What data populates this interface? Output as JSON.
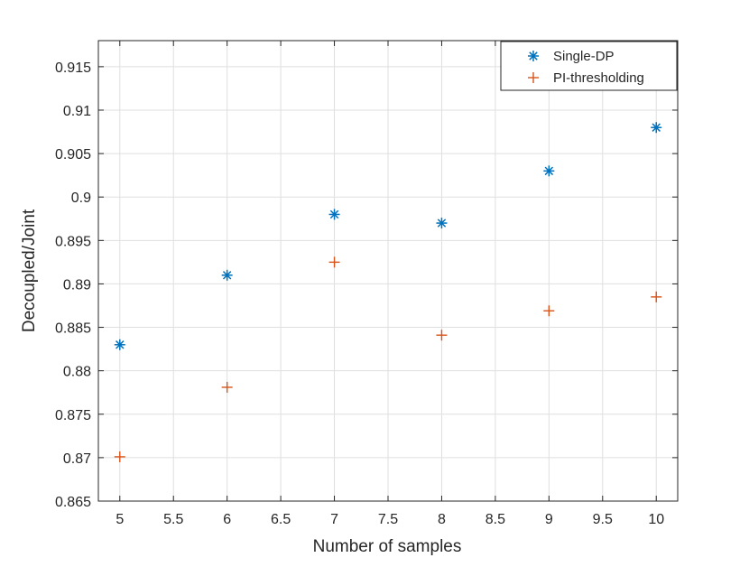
{
  "chart_data": {
    "type": "scatter",
    "xlabel": "Number of samples",
    "ylabel": "Decoupled/Joint",
    "xlim": [
      4.8,
      10.2
    ],
    "ylim": [
      0.865,
      0.918
    ],
    "xticks": [
      5,
      5.5,
      6,
      6.5,
      7,
      7.5,
      8,
      8.5,
      9,
      9.5,
      10
    ],
    "xtick_labels": [
      "5",
      "5.5",
      "6",
      "6.5",
      "7",
      "7.5",
      "8",
      "8.5",
      "9",
      "9.5",
      "10"
    ],
    "yticks": [
      0.865,
      0.87,
      0.875,
      0.88,
      0.885,
      0.89,
      0.895,
      0.9,
      0.905,
      0.91,
      0.915
    ],
    "ytick_labels": [
      "0.865",
      "0.87",
      "0.875",
      "0.88",
      "0.885",
      "0.89",
      "0.895",
      "0.9",
      "0.905",
      "0.91",
      "0.915"
    ],
    "grid": true,
    "legend_position": "top-right",
    "series": [
      {
        "name": "Single-DP",
        "marker": "asterisk",
        "color": "#0072BD",
        "x": [
          5,
          6,
          7,
          8,
          9,
          10
        ],
        "y": [
          0.883,
          0.891,
          0.898,
          0.897,
          0.903,
          0.908
        ]
      },
      {
        "name": "PI-thresholding",
        "marker": "plus",
        "color": "#D95319",
        "x": [
          5,
          6,
          7,
          8,
          9,
          10
        ],
        "y": [
          0.8701,
          0.8781,
          0.8925,
          0.8841,
          0.8869,
          0.8885
        ]
      }
    ]
  }
}
